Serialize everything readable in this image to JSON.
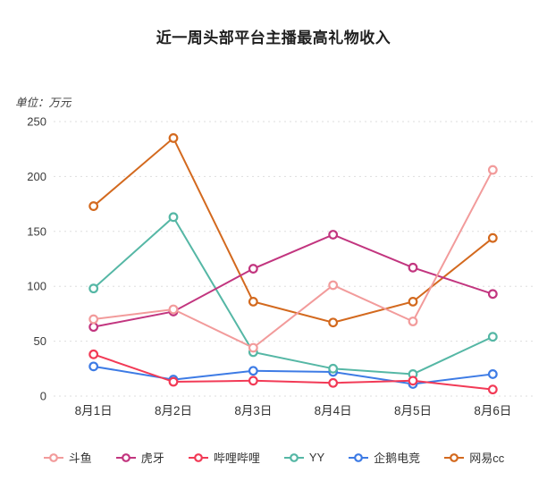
{
  "title": "近一周头部平台主播最高礼物收入",
  "unit_label": "单位：万元",
  "chart_data": {
    "type": "line",
    "title": "近一周头部平台主播最高礼物收入",
    "ylabel": "单位：万元",
    "categories": [
      "8月1日",
      "8月2日",
      "8月3日",
      "8月4日",
      "8月5日",
      "8月6日"
    ],
    "series": [
      {
        "name": "斗鱼",
        "slug": "douyu",
        "color": "#F29B9B",
        "values": [
          70,
          79,
          44,
          101,
          68,
          206
        ]
      },
      {
        "name": "虎牙",
        "slug": "huya",
        "color": "#C2357F",
        "values": [
          63,
          77,
          116,
          147,
          117,
          93
        ]
      },
      {
        "name": "哔哩哔哩",
        "slug": "bilibili",
        "color": "#F23A56",
        "values": [
          38,
          13,
          14,
          12,
          14,
          6
        ]
      },
      {
        "name": "YY",
        "slug": "yy",
        "color": "#55B7A5",
        "values": [
          98,
          163,
          40,
          25,
          20,
          54
        ]
      },
      {
        "name": "企鹅电竞",
        "slug": "qie-esports",
        "color": "#3D7BE5",
        "values": [
          27,
          15,
          23,
          22,
          11,
          20
        ]
      },
      {
        "name": "网易cc",
        "slug": "netease-cc",
        "color": "#D3691E",
        "values": [
          173,
          235,
          86,
          67,
          86,
          144
        ]
      }
    ],
    "ylim": [
      0,
      250
    ],
    "yticks": [
      0,
      50,
      100,
      150,
      200,
      250
    ],
    "grid": true,
    "grid_style": "dotted",
    "legend_position": "bottom",
    "marker": "hollow-circle",
    "axis_label_color": "#3a3a3a",
    "gridline_color": "#dddddd"
  }
}
